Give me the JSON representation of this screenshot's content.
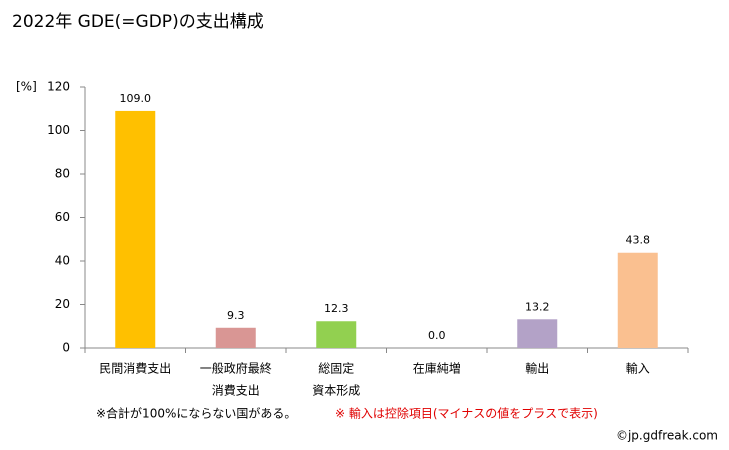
{
  "chart_data": {
    "type": "bar",
    "title": "2022年 GDE(=GDP)の支出構成",
    "y_label": "[%]",
    "categories": [
      [
        "民間消費支出"
      ],
      [
        "一般政府最終",
        "消費支出"
      ],
      [
        "総固定",
        "資本形成"
      ],
      [
        "在庫純増"
      ],
      [
        "輸出"
      ],
      [
        "輸入"
      ]
    ],
    "values": [
      109.0,
      9.3,
      12.3,
      0.0,
      13.2,
      43.8
    ],
    "value_labels": [
      "109.0",
      "9.3",
      "12.3",
      "0.0",
      "13.2",
      "43.8"
    ],
    "colors": [
      "#ffc000",
      "#d99694",
      "#92d050",
      null,
      "#b3a2c7",
      "#fac090"
    ],
    "ylim": [
      0,
      120
    ],
    "yticks": [
      0,
      20,
      40,
      60,
      80,
      100,
      120
    ],
    "grid": false,
    "notes": [
      "※合計が100%にならない国がある。",
      "※ 輸入は控除項目(マイナスの値をプラスで表示)"
    ],
    "credit": "©jp.gdfreak.com"
  }
}
